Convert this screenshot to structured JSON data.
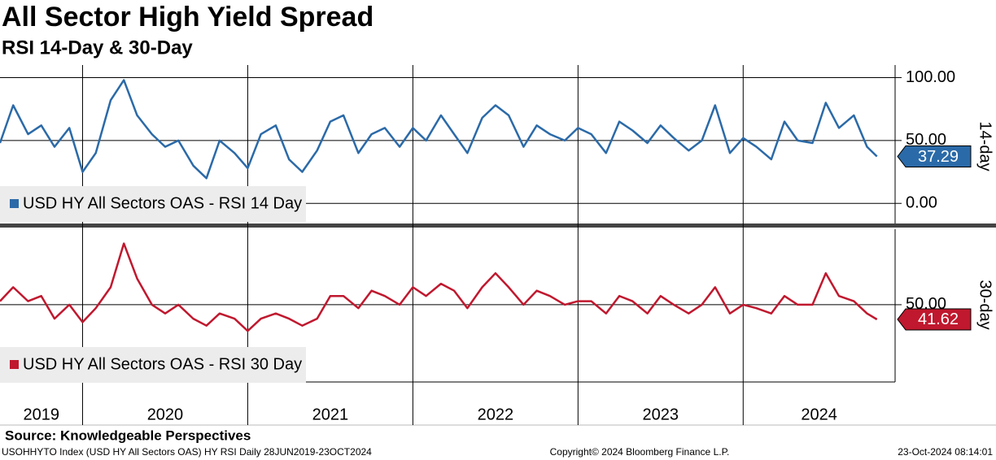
{
  "title": "All Sector High Yield Spread",
  "subtitle": "RSI 14-Day & 30-Day",
  "source": "Source: Knowledgeable Perspectives",
  "footer": {
    "left": "USOHHYTO Index (USD HY All Sectors OAS) HY RSI  Daily 28JUN2019-23OCT2024",
    "center": "Copyright© 2024 Bloomberg Finance L.P.",
    "right": "23-Oct-2024 08:14:01"
  },
  "x_axis": {
    "xlim": [
      2019.5,
      2024.92
    ],
    "gridlines": [
      2020,
      2021,
      2022,
      2023,
      2024
    ],
    "xticks": [
      {
        "value": 2019.75,
        "label": "2019"
      },
      {
        "value": 2020.5,
        "label": "2020"
      },
      {
        "value": 2021.5,
        "label": "2021"
      },
      {
        "value": 2022.5,
        "label": "2022"
      },
      {
        "value": 2023.5,
        "label": "2023"
      },
      {
        "value": 2024.46,
        "label": "2024"
      }
    ]
  },
  "chart_data": [
    {
      "type": "line",
      "axis_label": "14-day",
      "ylim": [
        -16,
        110
      ],
      "yticks": [
        {
          "value": 0,
          "label": "0.00"
        },
        {
          "value": 50,
          "label": "50.00"
        },
        {
          "value": 100,
          "label": "100.00"
        }
      ],
      "x": [
        2019.5,
        2019.58,
        2019.67,
        2019.75,
        2019.83,
        2019.92,
        2020.0,
        2020.08,
        2020.17,
        2020.25,
        2020.33,
        2020.42,
        2020.5,
        2020.58,
        2020.67,
        2020.75,
        2020.83,
        2020.92,
        2021.0,
        2021.08,
        2021.17,
        2021.25,
        2021.33,
        2021.42,
        2021.5,
        2021.58,
        2021.67,
        2021.75,
        2021.83,
        2021.92,
        2022.0,
        2022.08,
        2022.17,
        2022.25,
        2022.33,
        2022.42,
        2022.5,
        2022.58,
        2022.67,
        2022.75,
        2022.83,
        2022.92,
        2023.0,
        2023.08,
        2023.17,
        2023.25,
        2023.33,
        2023.42,
        2023.5,
        2023.58,
        2023.67,
        2023.75,
        2023.83,
        2023.92,
        2024.0,
        2024.08,
        2024.17,
        2024.25,
        2024.33,
        2024.42,
        2024.5,
        2024.58,
        2024.67,
        2024.75,
        2024.81
      ],
      "series": [
        {
          "name": "USD HY All Sectors OAS - RSI 14 Day",
          "color": "#2b6aa8",
          "values": [
            48,
            78,
            55,
            62,
            45,
            60,
            25,
            40,
            82,
            98,
            70,
            55,
            45,
            50,
            30,
            20,
            50,
            40,
            28,
            55,
            62,
            35,
            25,
            42,
            65,
            70,
            40,
            55,
            60,
            45,
            60,
            50,
            70,
            55,
            40,
            68,
            78,
            70,
            45,
            62,
            55,
            50,
            60,
            55,
            40,
            65,
            58,
            48,
            62,
            52,
            42,
            50,
            78,
            40,
            52,
            45,
            35,
            65,
            50,
            48,
            80,
            60,
            70,
            45,
            37.29
          ]
        }
      ]
    },
    {
      "type": "line",
      "axis_label": "30-day",
      "ylim": [
        5.8,
        93.2
      ],
      "yticks": [
        {
          "value": 50,
          "label": "50.00"
        }
      ],
      "x": [
        2019.5,
        2019.58,
        2019.67,
        2019.75,
        2019.83,
        2019.92,
        2020.0,
        2020.08,
        2020.17,
        2020.25,
        2020.33,
        2020.42,
        2020.5,
        2020.58,
        2020.67,
        2020.75,
        2020.83,
        2020.92,
        2021.0,
        2021.08,
        2021.17,
        2021.25,
        2021.33,
        2021.42,
        2021.5,
        2021.58,
        2021.67,
        2021.75,
        2021.83,
        2021.92,
        2022.0,
        2022.08,
        2022.17,
        2022.25,
        2022.33,
        2022.42,
        2022.5,
        2022.58,
        2022.67,
        2022.75,
        2022.83,
        2022.92,
        2023.0,
        2023.08,
        2023.17,
        2023.25,
        2023.33,
        2023.42,
        2023.5,
        2023.58,
        2023.67,
        2023.75,
        2023.83,
        2023.92,
        2024.0,
        2024.08,
        2024.17,
        2024.25,
        2024.33,
        2024.42,
        2024.5,
        2024.58,
        2024.67,
        2024.75,
        2024.81
      ],
      "series": [
        {
          "name": "USD HY All Sectors OAS - RSI 30 Day",
          "color": "#c0182e",
          "values": [
            52,
            60,
            52,
            55,
            42,
            50,
            40,
            48,
            60,
            85,
            65,
            50,
            45,
            50,
            42,
            38,
            45,
            42,
            35,
            42,
            45,
            42,
            38,
            42,
            55,
            55,
            48,
            58,
            55,
            50,
            60,
            55,
            62,
            58,
            48,
            60,
            68,
            60,
            50,
            58,
            55,
            50,
            52,
            52,
            45,
            55,
            52,
            45,
            55,
            50,
            45,
            50,
            60,
            45,
            50,
            48,
            45,
            55,
            50,
            50,
            68,
            55,
            52,
            45,
            41.62
          ]
        }
      ]
    }
  ]
}
